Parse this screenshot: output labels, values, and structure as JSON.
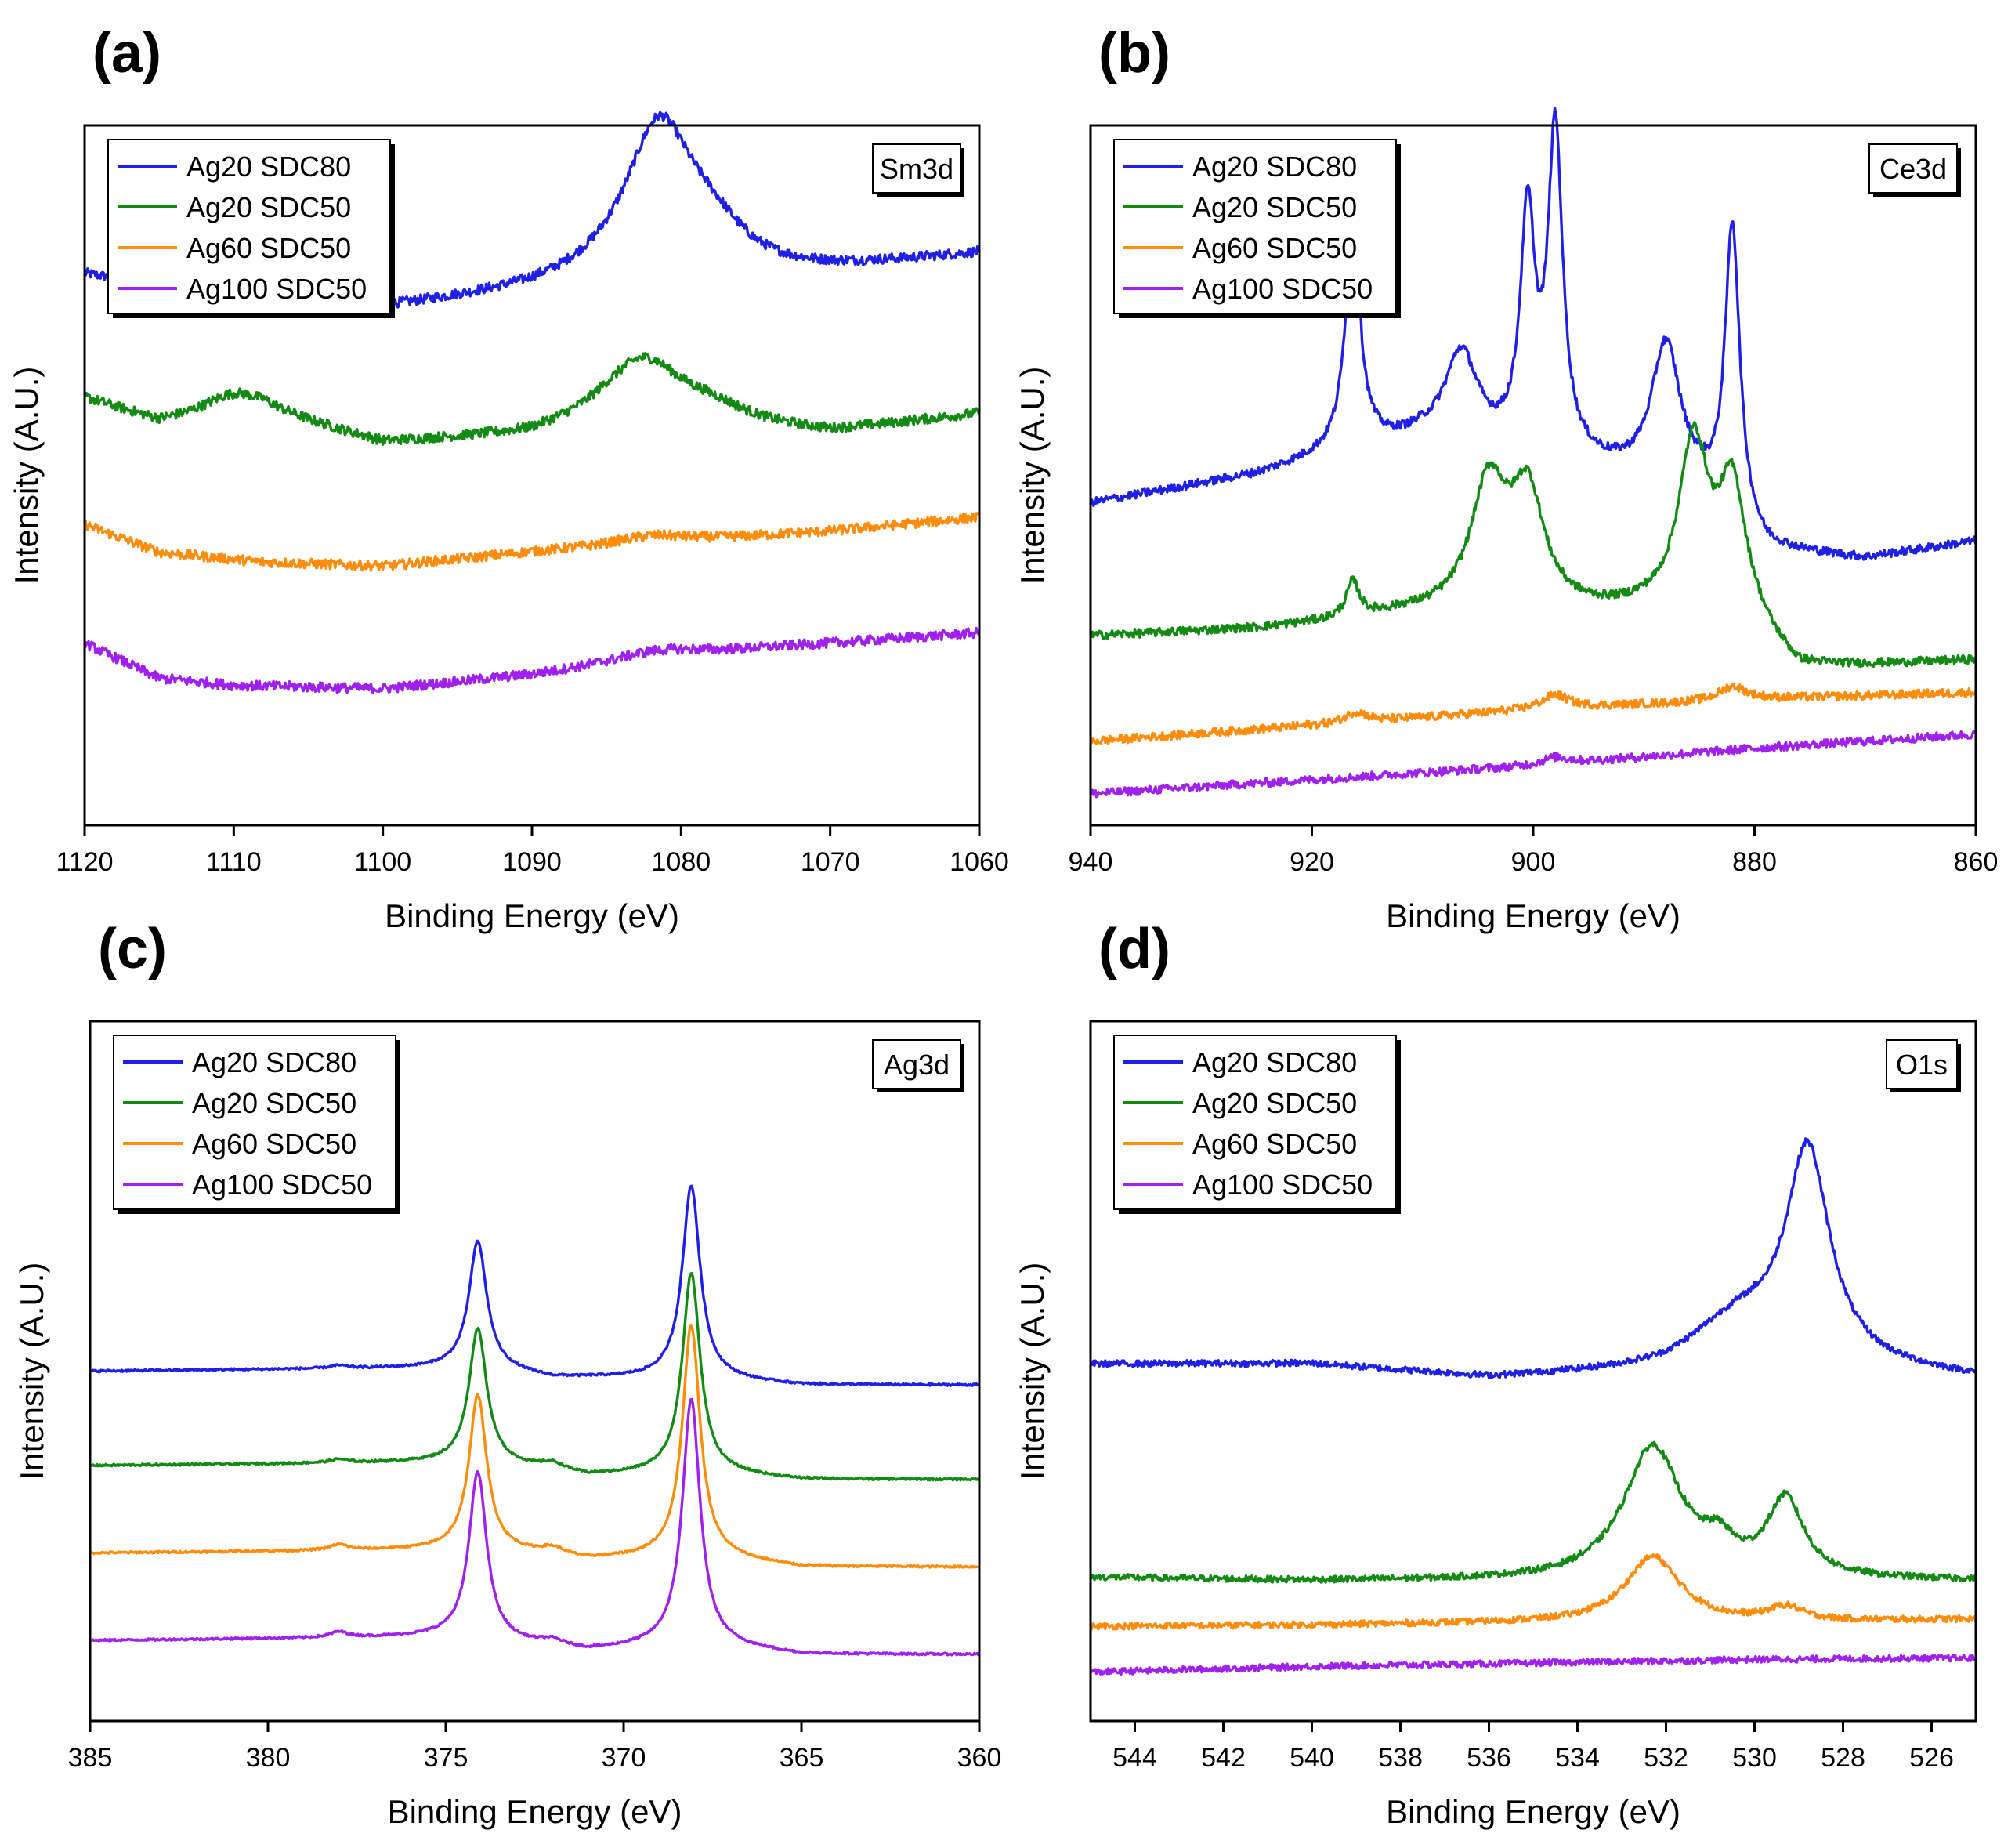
{
  "figure": {
    "legend_entries": [
      "Ag20 SDC80",
      "Ag20 SDC50",
      "Ag60 SDC50",
      "Ag100 SDC50"
    ]
  },
  "colors": {
    "Ag20 SDC80": "#1f1fe6",
    "Ag20 SDC50": "#138a13",
    "Ag60 SDC50": "#ff8c0a",
    "Ag100 SDC50": "#a020f0",
    "axis": "#000000"
  },
  "chart_data": [
    {
      "panel": "(a)",
      "type": "line",
      "title": "Sm3d",
      "xlabel": "Binding Energy (eV)",
      "ylabel": "Intensity (A.U.)",
      "xlim": [
        1120,
        1060
      ],
      "ylim": [
        0,
        1
      ],
      "xticks": [
        1120,
        1110,
        1100,
        1090,
        1080,
        1070,
        1060
      ],
      "legend": "top-left",
      "noise": 0.007,
      "series": [
        {
          "name": "Ag20 SDC80",
          "baseline": [
            [
              1120,
              0.785
            ],
            [
              1115,
              0.765
            ],
            [
              1108,
              0.79
            ],
            [
              1100,
              0.735
            ],
            [
              1090,
              0.76
            ],
            [
              1085,
              0.775
            ],
            [
              1075,
              0.78
            ],
            [
              1070,
              0.79
            ],
            [
              1060,
              0.815
            ]
          ],
          "peaks": [
            [
              1109,
              0.07,
              2.2
            ],
            [
              1081.5,
              0.215,
              2.8
            ],
            [
              1078,
              0.05,
              3
            ]
          ]
        },
        {
          "name": "Ag20 SDC50",
          "baseline": [
            [
              1120,
              0.61
            ],
            [
              1115,
              0.575
            ],
            [
              1108,
              0.59
            ],
            [
              1100,
              0.545
            ],
            [
              1090,
              0.555
            ],
            [
              1085,
              0.575
            ],
            [
              1070,
              0.56
            ],
            [
              1060,
              0.587
            ]
          ],
          "peaks": [
            [
              1110,
              0.03,
              2.5
            ],
            [
              1082.5,
              0.09,
              3.2
            ],
            [
              1078,
              0.02,
              3
            ]
          ]
        },
        {
          "name": "Ag60 SDC50",
          "baseline": [
            [
              1120,
              0.43
            ],
            [
              1115,
              0.39
            ],
            [
              1108,
              0.376
            ],
            [
              1100,
              0.37
            ],
            [
              1090,
              0.39
            ],
            [
              1080,
              0.405
            ],
            [
              1070,
              0.42
            ],
            [
              1060,
              0.44
            ]
          ],
          "peaks": [
            [
              1082,
              0.012,
              3
            ]
          ]
        },
        {
          "name": "Ag100 SDC50",
          "baseline": [
            [
              1120,
              0.26
            ],
            [
              1115,
              0.21
            ],
            [
              1110,
              0.2
            ],
            [
              1100,
              0.195
            ],
            [
              1090,
              0.215
            ],
            [
              1080,
              0.245
            ],
            [
              1070,
              0.26
            ],
            [
              1060,
              0.275
            ]
          ],
          "peaks": [
            [
              1082,
              0.01,
              3
            ]
          ]
        }
      ]
    },
    {
      "panel": "(b)",
      "type": "line",
      "title": "Ce3d",
      "xlabel": "Binding Energy (eV)",
      "ylabel": "Intensity (A.U.)",
      "xlim": [
        940,
        860
      ],
      "ylim": [
        0,
        1
      ],
      "xticks": [
        940,
        920,
        900,
        880,
        860
      ],
      "legend": "top-left",
      "noise": 0.006,
      "series": [
        {
          "name": "Ag20 SDC80",
          "baseline": [
            [
              940,
              0.46
            ],
            [
              925,
              0.5
            ],
            [
              918,
              0.53
            ],
            [
              910,
              0.55
            ],
            [
              895,
              0.51
            ],
            [
              885,
              0.47
            ],
            [
              879,
              0.39
            ],
            [
              870,
              0.38
            ],
            [
              860,
              0.405
            ]
          ],
          "peaks": [
            [
              916.3,
              0.32,
              0.8
            ],
            [
              906.5,
              0.13,
              1.8
            ],
            [
              900.5,
              0.33,
              0.8
            ],
            [
              898,
              0.46,
              0.8
            ],
            [
              888,
              0.2,
              1.6
            ],
            [
              882,
              0.42,
              0.8
            ]
          ]
        },
        {
          "name": "Ag20 SDC50",
          "baseline": [
            [
              940,
              0.27
            ],
            [
              925,
              0.28
            ],
            [
              918,
              0.29
            ],
            [
              912,
              0.3
            ],
            [
              896,
              0.3
            ],
            [
              890,
              0.3
            ],
            [
              880,
              0.27
            ],
            [
              876,
              0.22
            ],
            [
              860,
              0.235
            ]
          ],
          "peaks": [
            [
              916.3,
              0.05,
              0.7
            ],
            [
              904,
              0.18,
              2
            ],
            [
              900.5,
              0.16,
              1.8
            ],
            [
              885.5,
              0.25,
              1.7
            ],
            [
              882,
              0.19,
              1.5
            ]
          ]
        },
        {
          "name": "Ag60 SDC50",
          "baseline": [
            [
              940,
              0.12
            ],
            [
              900,
              0.165
            ],
            [
              880,
              0.18
            ],
            [
              860,
              0.19
            ]
          ],
          "peaks": [
            [
              916,
              0.015,
              1.2
            ],
            [
              898,
              0.02,
              1.5
            ],
            [
              882,
              0.02,
              1.5
            ]
          ]
        },
        {
          "name": "Ag100 SDC50",
          "baseline": [
            [
              940,
              0.045
            ],
            [
              900,
              0.085
            ],
            [
              880,
              0.11
            ],
            [
              860,
              0.13
            ]
          ],
          "peaks": [
            [
              898,
              0.01,
              1.5
            ]
          ]
        }
      ]
    },
    {
      "panel": "(c)",
      "type": "line",
      "title": "Ag3d",
      "xlabel": "Binding Energy (eV)",
      "ylabel": "Intensity (A.U.)",
      "xlim": [
        385,
        360
      ],
      "ylim": [
        0,
        1
      ],
      "xticks": [
        385,
        380,
        375,
        370,
        365,
        360
      ],
      "legend": "top-left",
      "noise": 0.0015,
      "series": [
        {
          "name": "Ag20 SDC80",
          "baseline": [
            [
              385,
              0.5
            ],
            [
              374,
              0.505
            ],
            [
              372,
              0.49
            ],
            [
              368,
              0.49
            ],
            [
              365,
              0.48
            ],
            [
              360,
              0.48
            ]
          ],
          "peaks": [
            [
              378,
              0.004,
              0.3
            ],
            [
              374.1,
              0.18,
              0.3
            ],
            [
              368.1,
              0.275,
              0.3
            ]
          ]
        },
        {
          "name": "Ag20 SDC50",
          "baseline": [
            [
              385,
              0.365
            ],
            [
              374,
              0.37
            ],
            [
              371,
              0.35
            ],
            [
              368,
              0.355
            ],
            [
              365,
              0.345
            ],
            [
              360,
              0.345
            ]
          ],
          "peaks": [
            [
              378,
              0.005,
              0.3
            ],
            [
              374.1,
              0.19,
              0.3
            ],
            [
              372,
              0.01,
              0.4
            ],
            [
              368.1,
              0.285,
              0.3
            ]
          ]
        },
        {
          "name": "Ag60 SDC50",
          "baseline": [
            [
              385,
              0.24
            ],
            [
              374,
              0.245
            ],
            [
              371,
              0.23
            ],
            [
              368,
              0.235
            ],
            [
              365,
              0.22
            ],
            [
              360,
              0.22
            ]
          ],
          "peaks": [
            [
              378,
              0.008,
              0.3
            ],
            [
              374.1,
              0.22,
              0.3
            ],
            [
              372,
              0.01,
              0.4
            ],
            [
              368.1,
              0.33,
              0.3
            ]
          ]
        },
        {
          "name": "Ag100 SDC50",
          "baseline": [
            [
              385,
              0.115
            ],
            [
              375,
              0.12
            ],
            [
              371,
              0.1
            ],
            [
              368,
              0.11
            ],
            [
              365,
              0.095
            ],
            [
              360,
              0.095
            ]
          ],
          "peaks": [
            [
              378,
              0.008,
              0.3
            ],
            [
              374.1,
              0.24,
              0.3
            ],
            [
              372,
              0.008,
              0.4
            ],
            [
              368.1,
              0.35,
              0.3
            ]
          ]
        }
      ]
    },
    {
      "panel": "(d)",
      "type": "line",
      "title": "O1s",
      "xlabel": "Binding Energy (eV)",
      "ylabel": "Intensity (A.U.)",
      "xlim": [
        545,
        525
      ],
      "ylim": [
        0,
        1
      ],
      "xticks": [
        544,
        542,
        540,
        538,
        536,
        534,
        532,
        530,
        528,
        526
      ],
      "legend": "top-left",
      "noise": 0.0045,
      "series": [
        {
          "name": "Ag20 SDC80",
          "baseline": [
            [
              545,
              0.51
            ],
            [
              540,
              0.51
            ],
            [
              536,
              0.49
            ],
            [
              532,
              0.5
            ],
            [
              530,
              0.52
            ],
            [
              527,
              0.5
            ],
            [
              525,
              0.49
            ]
          ],
          "peaks": [
            [
              530.5,
              0.05,
              1.2
            ],
            [
              528.8,
              0.3,
              0.6
            ]
          ]
        },
        {
          "name": "Ag20 SDC50",
          "baseline": [
            [
              545,
              0.205
            ],
            [
              540,
              0.2
            ],
            [
              535,
              0.2
            ],
            [
              530,
              0.2
            ],
            [
              525,
              0.2
            ]
          ],
          "peaks": [
            [
              532.3,
              0.19,
              0.8
            ],
            [
              529.3,
              0.11,
              0.5
            ],
            [
              530.8,
              0.035,
              0.4
            ]
          ]
        },
        {
          "name": "Ag60 SDC50",
          "baseline": [
            [
              545,
              0.135
            ],
            [
              540,
              0.137
            ],
            [
              535,
              0.14
            ],
            [
              530,
              0.14
            ],
            [
              525,
              0.145
            ]
          ],
          "peaks": [
            [
              532.3,
              0.095,
              0.75
            ],
            [
              529.3,
              0.02,
              0.5
            ]
          ]
        },
        {
          "name": "Ag100 SDC50",
          "baseline": [
            [
              545,
              0.07
            ],
            [
              540,
              0.078
            ],
            [
              535,
              0.083
            ],
            [
              530,
              0.088
            ],
            [
              525,
              0.09
            ]
          ],
          "peaks": []
        }
      ]
    }
  ]
}
